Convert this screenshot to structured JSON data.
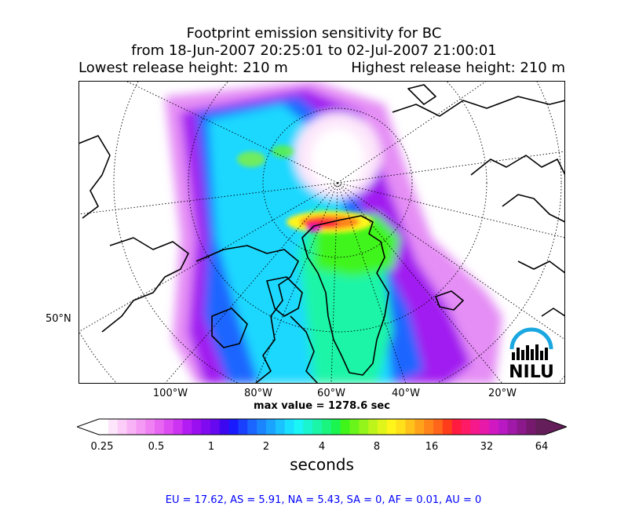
{
  "title": {
    "line1": "Footprint emission sensitivity for BC",
    "line2": "from 18-Jun-2007 20:25:01 to 02-Jul-2007 21:00:01",
    "release_low": "Lowest release height: 210 m",
    "release_high": "Highest release height: 210 m"
  },
  "map": {
    "longitude_labels": [
      "100°W",
      "80°W",
      "60°W",
      "40°W",
      "20°W"
    ],
    "latitude_labels": [
      "50°N"
    ],
    "max_value_text": "max value = 1278.6 sec",
    "logo_text": "NILU",
    "logo_color": "#1aa7e0"
  },
  "colorbar": {
    "tick_labels": [
      "0.25",
      "0.5",
      "1",
      "2",
      "4",
      "8",
      "16",
      "32",
      "64"
    ],
    "unit_label": "seconds",
    "colors": [
      "#ffffff",
      "#fde6fb",
      "#fbcdf8",
      "#f8b3f6",
      "#f59af4",
      "#f081f3",
      "#e766f2",
      "#dd4cf2",
      "#cc33f2",
      "#b31cf2",
      "#9a0ff0",
      "#800af0",
      "#6608f0",
      "#3d08f0",
      "#1a1aff",
      "#1a40ff",
      "#1a66ff",
      "#1a85ff",
      "#1aa3ff",
      "#1ac2ff",
      "#1ae0ff",
      "#1af5f5",
      "#1af5d0",
      "#1af5a8",
      "#1af580",
      "#1af550",
      "#40f51a",
      "#6af51a",
      "#94f51a",
      "#bdf51a",
      "#e0f51a",
      "#fff51a",
      "#ffe01a",
      "#ffc21a",
      "#ffa31a",
      "#ff851a",
      "#ff661a",
      "#ff3d1a",
      "#ff1a40",
      "#ff1a66",
      "#f5198c",
      "#e619a8",
      "#d119c2",
      "#b819c2",
      "#a019a8",
      "#8c198c",
      "#781970",
      "#641e5a"
    ]
  },
  "stats_text": "EU = 17.62,  AS = 5.91,  NA = 5.43,  SA = 0,  AF = 0.01,  AU = 0"
}
